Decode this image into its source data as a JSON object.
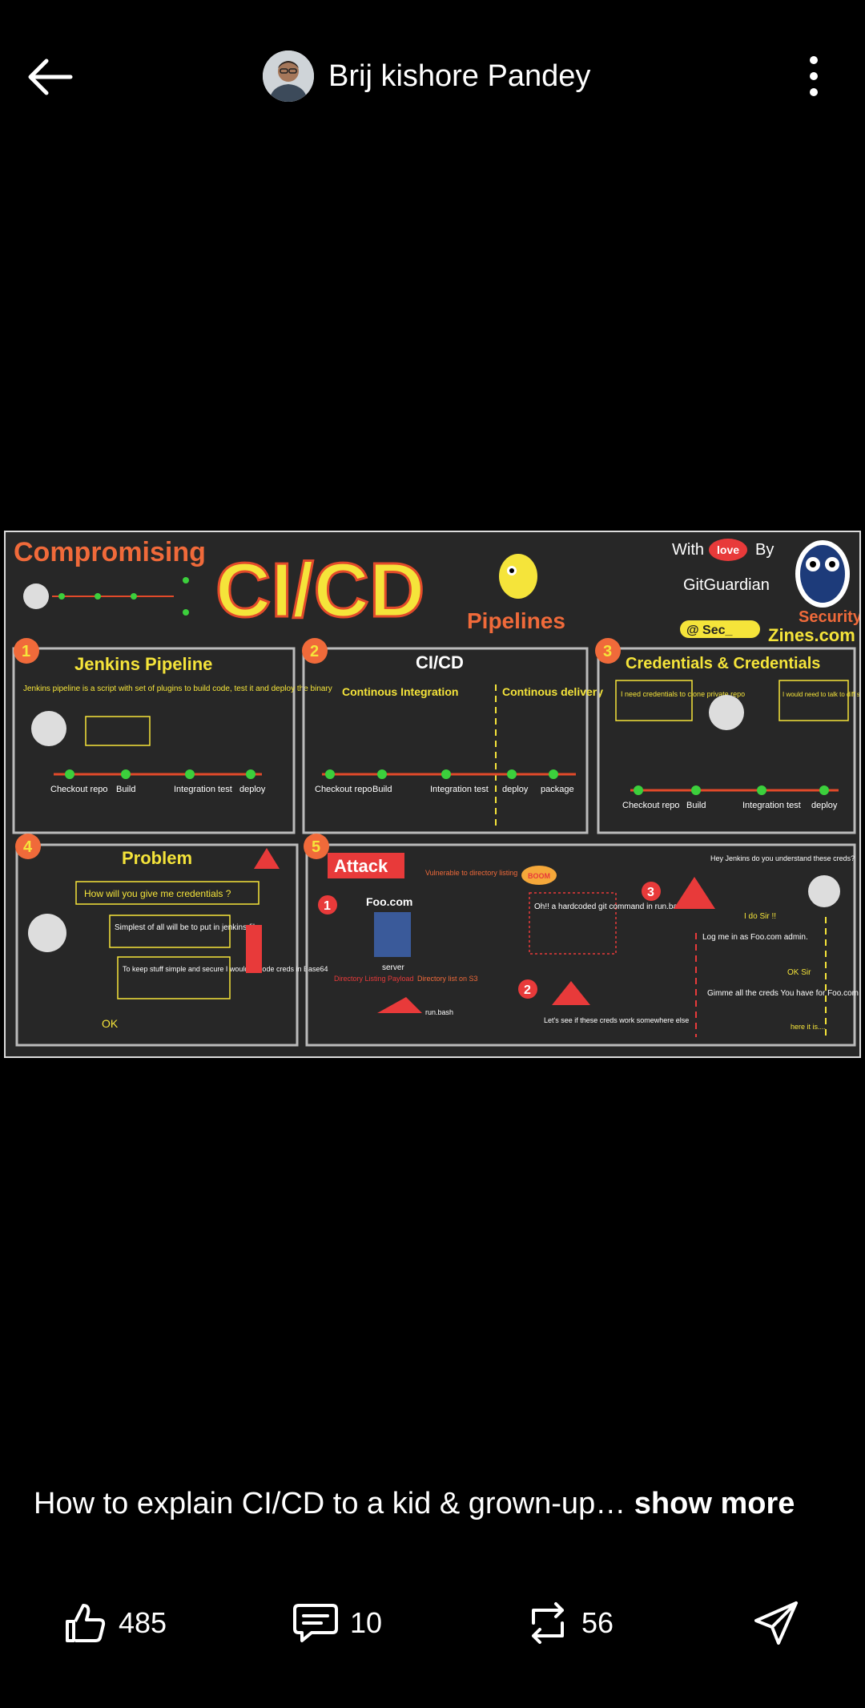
{
  "header": {
    "author_name": "Brij kishore Pandey"
  },
  "infographic": {
    "title_left": "Compromising",
    "title_main": "CI/CD",
    "title_right": "Pipelines",
    "credit_with": "With",
    "credit_love": "love",
    "credit_by": "By",
    "credit_org": "GitGuardian",
    "credit_handle": "@ Sec_",
    "credit_site_top": "Security",
    "credit_site": "Zines.com",
    "panels": [
      {
        "num": "1",
        "title": "Jenkins Pipeline",
        "desc": "Jenkins pipeline is a script with set of plugins to build code, test it and deploy the binary",
        "stages": [
          "Checkout repo",
          "Build",
          "Integration test",
          "deploy"
        ]
      },
      {
        "num": "2",
        "title": "CI/CD",
        "ci": "Continous Integration",
        "cd": "Continous delivery",
        "stages": [
          "Checkout repo",
          "Build",
          "Integration test",
          "deploy",
          "package"
        ]
      },
      {
        "num": "3",
        "title": "Credentials & Credentials",
        "note1": "I need credentials to clone private repo",
        "note2": "I would need to talk to diff services for testing creds needed !!",
        "stages": [
          "Checkout repo",
          "Build",
          "Integration test",
          "deploy"
        ]
      },
      {
        "num": "4",
        "title": "Problem",
        "q": "How will you give me credentials ?",
        "a1": "Simplest of all will be to put in jenkins file",
        "a2": "To keep stuff simple and secure I would encode creds in Base64",
        "ok": "OK"
      },
      {
        "num": "5",
        "title": "Attack",
        "host": "Foo.com",
        "boom": "BOOM",
        "note": "Oh!! a hardcoded git command in run.bash",
        "vuln": "Vulnerable to directory listing",
        "server": "server",
        "dir": "Directory list on S3",
        "payload": "Directory Listing Payload",
        "run": "run.bash",
        "see": "Let's see if these creds work somewhere else",
        "chat1": "Hey Jenkins do you understand these creds?",
        "chat2": "I do Sir !!",
        "chat3": "Log me in as Foo.com admin.",
        "chat4": "OK Sir",
        "chat5": "Gimme all the creds You have for Foo.com",
        "chat6": "here it is....",
        "steps": [
          "1",
          "2",
          "3"
        ]
      }
    ]
  },
  "caption": {
    "text": "How to explain CI/CD to a kid & grown-up…",
    "more": "show more"
  },
  "actions": {
    "likes": "485",
    "comments": "10",
    "reposts": "56"
  },
  "colors": {
    "background": "#000000",
    "panel_bg": "#262626",
    "accent_yellow": "#f5e43a",
    "accent_red": "#e83a3a",
    "accent_green": "#3ccf3c"
  }
}
